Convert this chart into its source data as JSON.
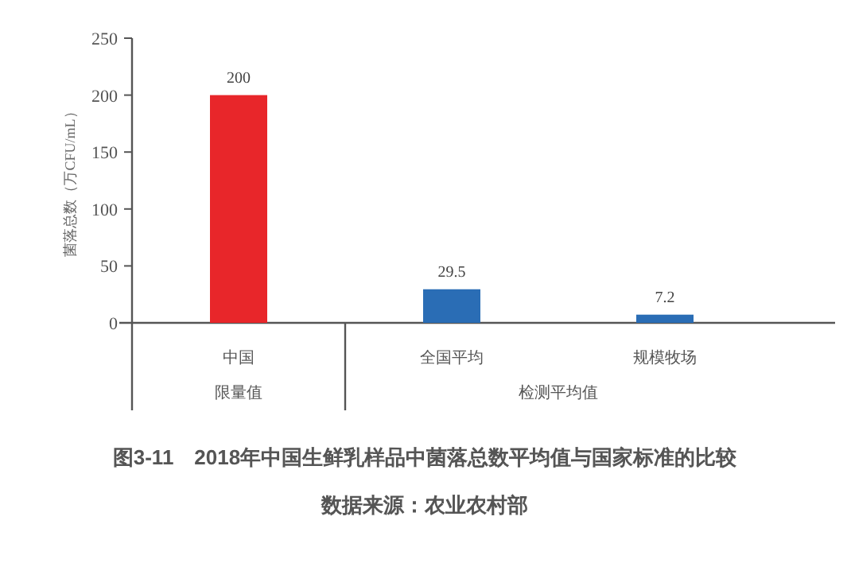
{
  "chart_data": {
    "type": "bar",
    "title": "图3-11　2018年中国生鲜乳样品中菌落总数平均值与国家标准的比较",
    "ylabel": "菌落总数（万CFU/mL）",
    "categories": [
      "中国",
      "全国平均",
      "规模牧场"
    ],
    "values": [
      200,
      29.5,
      7.2
    ],
    "colors": [
      "#e8262a",
      "#2a6db5",
      "#2a6db5"
    ],
    "data_labels": true,
    "ylim": [
      0,
      250
    ],
    "yticks": [
      0,
      50,
      100,
      150,
      200,
      250
    ],
    "grid": false,
    "annotations": [
      "限量值",
      "检测平均值",
      "数据来源：农业农村部"
    ]
  }
}
